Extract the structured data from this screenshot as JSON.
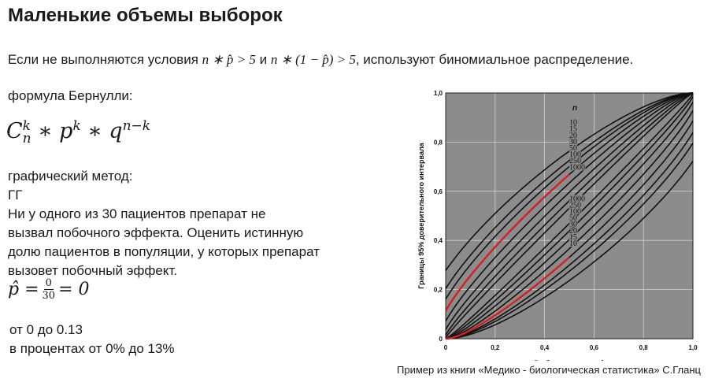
{
  "slide": {
    "title": "Маленькие объемы выборок",
    "condition": {
      "prefix": "Если не выполняются условия",
      "formula1": "n ∗ p̂ > 5",
      "and": "и",
      "formula2": "n ∗ (1 − p̂) > 5",
      "suffix": ", используют биномиальное распределение."
    },
    "bernoulli_label": "формула Бернулли:",
    "bernoulli_formula": {
      "c": "C",
      "k_sup": "k",
      "n_sub": "n",
      "middle": " ∗ p",
      "k2": "k",
      "q_part": " ∗ q",
      "exp": "n−k"
    },
    "lines": [
      "графический метод:",
      "ГГ",
      "Ни у одного из 30 пациентов препарат не",
      "вызвал побочного эффекта.  Оценить истинную",
      "долю пациентов в популяции, у которых препарат",
      "вызовет  побочный эффект."
    ],
    "phat": {
      "lhs": "p̂ =",
      "num": "0",
      "den": "30",
      "rhs": "= 0"
    },
    "range_lines": [
      "от 0 до 0.13",
      "в процентах от 0% до 13%"
    ],
    "caption": "Пример из книги «Медико - биологическая статистика» С.Гланц"
  },
  "chart_data": {
    "type": "line",
    "xlabel": "Выборочная доля p̂",
    "ylabel": "Границы 95% доверительного интервала",
    "xlim": [
      0,
      1.0
    ],
    "ylim": [
      0,
      1.0
    ],
    "x_ticks": [
      "0",
      "0,2",
      "0,4",
      "0,6",
      "0,8",
      "1,0"
    ],
    "y_ticks": [
      "0",
      "0,2",
      "0,4",
      "0,6",
      "0,8",
      "1,0"
    ],
    "n_header": "n",
    "upper_labels": [
      "10",
      "15",
      "20",
      "30",
      "50",
      "100",
      "250",
      "1000"
    ],
    "lower_labels": [
      "1000",
      "250",
      "100",
      "50",
      "30",
      "20",
      "15",
      "10"
    ],
    "n_values": [
      10,
      15,
      20,
      30,
      50,
      100,
      250,
      1000
    ],
    "highlight_n": 30,
    "colors": {
      "plot_bg": "#8c8c8c",
      "curve": "#111111",
      "highlight": "#d42020",
      "grid": "#d0d0d0"
    }
  }
}
